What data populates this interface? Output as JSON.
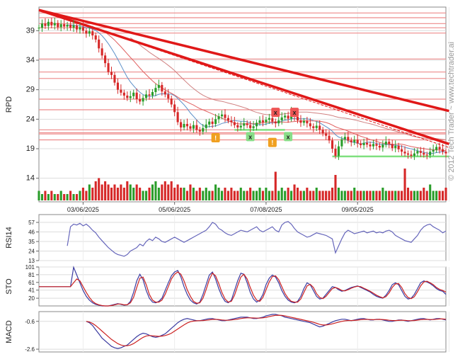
{
  "watermark": "© 2012 Tech Trader ~ www.techtrader.ai",
  "colors": {
    "up": "#2a9d2a",
    "down": "#d62828",
    "trendline": "#e01818",
    "resistance": "#ee8a8a",
    "support": "#7fe07f",
    "ma_fast": "#e06060",
    "ma_slow": "#5a8fc8",
    "osc_blue": "#3a3aa0",
    "osc_red": "#cc2222",
    "rsi_line": "#6666bb",
    "warn": "#f0a020",
    "sell_marker": "#ee5555",
    "buy_marker": "#88dd88"
  },
  "chart_data": [
    {
      "type": "candlestick",
      "ylabel": "RPD",
      "yticks": [
        39,
        34,
        29,
        24,
        19,
        14
      ],
      "ylim": [
        10,
        43
      ],
      "x_tick_labels": [
        "03/06/2025",
        "05/06/2025",
        "07/08/2025",
        "09/05/2025"
      ],
      "close_series": [
        39.5,
        40.2,
        39.8,
        40.5,
        39.9,
        40.3,
        39.6,
        40.1,
        39.7,
        40.0,
        39.5,
        39.9,
        39.2,
        39.6,
        39.0,
        38.5,
        38.9,
        38.2,
        37.5,
        36.0,
        34.8,
        33.5,
        32.0,
        31.5,
        30.2,
        29.0,
        28.5,
        28.0,
        27.6,
        27.9,
        28.5,
        27.4,
        27.0,
        27.6,
        28.2,
        28.0,
        28.6,
        29.3,
        29.8,
        28.7,
        28.2,
        27.5,
        26.5,
        25.2,
        23.5,
        22.6,
        23.2,
        22.8,
        22.4,
        23.0,
        22.2,
        21.9,
        22.5,
        23.1,
        23.6,
        23.2,
        24.0,
        24.5,
        24.8,
        24.2,
        23.8,
        23.5,
        23.0,
        22.6,
        22.9,
        23.3,
        23.0,
        22.5,
        22.8,
        23.4,
        23.8,
        23.5,
        23.9,
        24.2,
        23.6,
        23.3,
        23.8,
        24.3,
        24.6,
        24.1,
        25.2,
        24.4,
        23.8,
        23.4,
        23.7,
        23.3,
        22.8,
        22.5,
        22.9,
        22.2,
        21.6,
        21.2,
        20.4,
        19.0,
        17.8,
        19.4,
        20.6,
        21.0,
        20.4,
        20.1,
        20.5,
        19.9,
        19.6,
        20.0,
        19.7,
        19.4,
        19.8,
        19.5,
        19.2,
        19.7,
        20.2,
        19.8,
        19.1,
        19.5,
        18.9,
        18.5,
        18.2,
        18.0,
        17.8,
        18.2,
        18.6,
        18.3,
        18.0,
        17.9,
        18.5,
        18.8,
        19.3,
        18.9,
        18.5,
        18.2
      ],
      "trendlines": [
        {
          "from": [
            0,
            42.5
          ],
          "to": [
            130,
            25.4
          ]
        },
        {
          "from": [
            0,
            42.5
          ],
          "to": [
            130,
            19.8
          ]
        },
        {
          "from": [
            0,
            42.5
          ],
          "to": [
            130,
            19.2
          ]
        }
      ],
      "resistance_levels": [
        42.0,
        41.2,
        40.2,
        39.5,
        38.6,
        34.2,
        32.0,
        30.9,
        27.4,
        25.6,
        22.2,
        21.7,
        21.5,
        20.5
      ],
      "support_segments": [
        {
          "y": 22.2,
          "from": 62,
          "to": 78
        },
        {
          "y": 17.7,
          "from": 93,
          "to": 130
        }
      ],
      "markers": [
        {
          "kind": "warn",
          "label": "!",
          "x": 56,
          "y": 20.8
        },
        {
          "kind": "warn",
          "label": "!",
          "x": 74,
          "y": 20.0
        },
        {
          "kind": "buy",
          "label": "x",
          "x": 67,
          "y": 21.0
        },
        {
          "kind": "buy",
          "label": "x",
          "x": 79,
          "y": 21.0
        },
        {
          "kind": "sell",
          "label": "x",
          "x": 75,
          "y": 25.1
        },
        {
          "kind": "sell",
          "label": "x",
          "x": 81,
          "y": 25.1
        }
      ],
      "volume": [
        0.3,
        0.2,
        0.3,
        0.2,
        0.3,
        0.2,
        0.2,
        0.3,
        0.2,
        0.2,
        0.3,
        0.2,
        0.2,
        0.3,
        0.4,
        0.3,
        0.5,
        0.4,
        0.6,
        0.7,
        0.5,
        0.6,
        0.5,
        0.4,
        0.5,
        0.4,
        0.5,
        0.4,
        0.6,
        0.5,
        0.4,
        0.5,
        0.4,
        0.3,
        0.3,
        0.4,
        0.5,
        0.6,
        0.4,
        0.5,
        0.6,
        0.5,
        0.6,
        0.4,
        0.5,
        0.4,
        0.4,
        0.3,
        0.5,
        0.4,
        0.3,
        0.4,
        0.3,
        0.4,
        0.3,
        0.3,
        0.5,
        0.4,
        0.3,
        0.4,
        0.3,
        0.4,
        0.3,
        0.3,
        0.4,
        0.3,
        0.3,
        0.4,
        0.3,
        0.3,
        0.4,
        0.3,
        0.4,
        0.3,
        0.3,
        0.9,
        0.3,
        0.4,
        0.3,
        0.4,
        0.3,
        0.5,
        0.4,
        0.3,
        0.3,
        0.4,
        0.3,
        0.3,
        0.4,
        0.3,
        0.3,
        0.3,
        0.3,
        0.4,
        0.8,
        0.4,
        0.3,
        0.3,
        0.3,
        0.3,
        0.4,
        0.3,
        0.3,
        0.3,
        0.3,
        0.3,
        0.3,
        0.3,
        0.3,
        0.4,
        0.3,
        0.3,
        0.3,
        0.3,
        0.3,
        0.3,
        1.0,
        0.4,
        0.3,
        0.3,
        0.3,
        0.3,
        0.4,
        0.3,
        0.5,
        0.3,
        0.3,
        0.3,
        0.3,
        0.4
      ]
    },
    {
      "type": "line",
      "ylabel": "RSI14",
      "yticks": [
        57,
        46,
        35,
        24,
        13
      ],
      "ylim": [
        13,
        66
      ],
      "values": [
        null,
        null,
        null,
        null,
        null,
        null,
        null,
        null,
        null,
        30,
        52,
        55,
        54,
        56,
        53,
        55,
        52,
        48,
        45,
        40,
        36,
        32,
        28,
        25,
        22,
        20,
        19,
        18,
        20,
        24,
        26,
        28,
        32,
        30,
        35,
        38,
        36,
        40,
        38,
        35,
        34,
        36,
        38,
        40,
        38,
        36,
        34,
        36,
        38,
        40,
        42,
        44,
        46,
        48,
        52,
        57,
        55,
        50,
        48,
        45,
        43,
        42,
        44,
        46,
        48,
        47,
        46,
        48,
        50,
        52,
        48,
        46,
        48,
        50,
        52,
        48,
        46,
        54,
        57,
        58,
        55,
        50,
        46,
        44,
        42,
        40,
        41,
        43,
        45,
        44,
        43,
        42,
        40,
        38,
        22,
        30,
        38,
        45,
        48,
        46,
        44,
        45,
        46,
        47,
        45,
        46,
        47,
        45,
        46,
        45,
        47,
        48,
        46,
        42,
        40,
        38,
        36,
        35,
        34,
        38,
        42,
        48,
        52,
        54,
        55,
        52,
        50,
        48,
        45,
        47
      ]
    },
    {
      "type": "line",
      "ylabel": "STO",
      "yticks": [
        101,
        81,
        61,
        41,
        20
      ],
      "ylim": [
        0,
        101
      ],
      "series": [
        {
          "values": [
            50,
            50,
            50,
            50,
            50,
            50,
            50,
            50,
            50,
            50,
            50,
            100,
            80,
            60,
            40,
            25,
            15,
            8,
            4,
            2,
            0,
            0,
            0,
            2,
            4,
            6,
            4,
            2,
            3,
            12,
            35,
            65,
            82,
            68,
            40,
            20,
            10,
            8,
            12,
            20,
            40,
            60,
            78,
            88,
            92,
            75,
            50,
            30,
            15,
            8,
            5,
            10,
            30,
            55,
            80,
            88,
            70,
            45,
            25,
            12,
            8,
            15,
            40,
            65,
            85,
            82,
            60,
            35,
            18,
            10,
            15,
            30,
            55,
            72,
            80,
            75,
            60,
            40,
            25,
            15,
            10,
            8,
            12,
            25,
            45,
            60,
            55,
            40,
            25,
            18,
            20,
            30,
            40,
            50,
            48,
            42,
            38,
            40,
            44,
            48,
            50,
            52,
            48,
            44,
            40,
            36,
            30,
            25,
            22,
            20,
            28,
            40,
            55,
            60,
            55,
            40,
            25,
            18,
            20,
            30,
            45,
            60,
            65,
            62,
            58,
            52,
            45,
            40,
            38,
            30
          ]
        },
        {
          "values": [
            50,
            50,
            50,
            50,
            50,
            50,
            50,
            50,
            50,
            50,
            50,
            60,
            70,
            65,
            50,
            35,
            22,
            12,
            6,
            3,
            1,
            0,
            0,
            1,
            3,
            5,
            5,
            3,
            3,
            8,
            22,
            48,
            72,
            75,
            55,
            30,
            15,
            10,
            10,
            15,
            30,
            50,
            70,
            82,
            88,
            82,
            65,
            42,
            25,
            12,
            7,
            8,
            20,
            42,
            68,
            85,
            78,
            58,
            35,
            18,
            10,
            12,
            28,
            52,
            75,
            82,
            70,
            48,
            28,
            15,
            12,
            22,
            42,
            62,
            76,
            78,
            68,
            50,
            32,
            20,
            12,
            10,
            10,
            18,
            35,
            52,
            56,
            48,
            32,
            22,
            19,
            25,
            35,
            45,
            48,
            45,
            40,
            39,
            42,
            46,
            49,
            51,
            50,
            46,
            42,
            38,
            33,
            28,
            24,
            21,
            24,
            34,
            48,
            57,
            58,
            48,
            32,
            22,
            19,
            24,
            37,
            52,
            62,
            64,
            60,
            55,
            48,
            43,
            40,
            36
          ]
        }
      ]
    },
    {
      "type": "line",
      "ylabel": "MACD",
      "yticks": [
        -0.6,
        -2.6
      ],
      "ylim": [
        -2.8,
        0.1
      ],
      "series": [
        {
          "values": [
            null,
            null,
            null,
            null,
            null,
            null,
            null,
            null,
            null,
            null,
            null,
            null,
            null,
            null,
            null,
            -0.6,
            -0.7,
            -0.9,
            -1.2,
            -1.5,
            -1.8,
            -2.0,
            -2.2,
            -2.4,
            -2.5,
            -2.55,
            -2.5,
            -2.4,
            -2.3,
            -2.1,
            -1.9,
            -1.7,
            -1.55,
            -1.45,
            -1.5,
            -1.6,
            -1.7,
            -1.75,
            -1.7,
            -1.6,
            -1.5,
            -1.3,
            -1.1,
            -0.9,
            -0.7,
            -0.55,
            -0.45,
            -0.4,
            -0.45,
            -0.5,
            -0.55,
            -0.55,
            -0.5,
            -0.45,
            -0.4,
            -0.4,
            -0.45,
            -0.5,
            -0.55,
            -0.55,
            -0.5,
            -0.45,
            -0.4,
            -0.35,
            -0.3,
            -0.3,
            -0.3,
            -0.35,
            -0.4,
            -0.4,
            -0.35,
            -0.3,
            -0.2,
            -0.15,
            -0.1,
            -0.1,
            -0.15,
            -0.2,
            -0.3,
            -0.35,
            -0.4,
            -0.45,
            -0.5,
            -0.55,
            -0.6,
            -0.65,
            -0.7,
            -0.8,
            -0.9,
            -1.0,
            -0.95,
            -0.85,
            -0.75,
            -0.65,
            -0.55,
            -0.5,
            -0.45,
            -0.45,
            -0.5,
            -0.55,
            -0.5,
            -0.45,
            -0.4,
            -0.4,
            -0.45,
            -0.5,
            -0.5,
            -0.45,
            -0.45,
            -0.5,
            -0.55,
            -0.6,
            -0.6,
            -0.55,
            -0.5,
            -0.5,
            -0.55,
            -0.6,
            -0.55,
            -0.5,
            -0.45,
            -0.4,
            -0.4,
            -0.45,
            -0.5,
            -0.45,
            -0.4,
            -0.4,
            -0.45,
            -0.5
          ]
        },
        {
          "values": [
            null,
            null,
            null,
            null,
            null,
            null,
            null,
            null,
            null,
            null,
            null,
            null,
            null,
            null,
            null,
            -0.6,
            -0.65,
            -0.75,
            -0.9,
            -1.1,
            -1.3,
            -1.5,
            -1.7,
            -1.9,
            -2.05,
            -2.2,
            -2.3,
            -2.35,
            -2.35,
            -2.3,
            -2.2,
            -2.05,
            -1.9,
            -1.75,
            -1.65,
            -1.62,
            -1.64,
            -1.66,
            -1.68,
            -1.66,
            -1.62,
            -1.55,
            -1.45,
            -1.3,
            -1.15,
            -1.0,
            -0.85,
            -0.72,
            -0.63,
            -0.58,
            -0.56,
            -0.55,
            -0.54,
            -0.52,
            -0.49,
            -0.46,
            -0.46,
            -0.47,
            -0.5,
            -0.52,
            -0.52,
            -0.5,
            -0.47,
            -0.44,
            -0.4,
            -0.37,
            -0.35,
            -0.35,
            -0.36,
            -0.37,
            -0.37,
            -0.35,
            -0.31,
            -0.26,
            -0.21,
            -0.17,
            -0.16,
            -0.17,
            -0.21,
            -0.26,
            -0.31,
            -0.36,
            -0.41,
            -0.46,
            -0.51,
            -0.56,
            -0.61,
            -0.67,
            -0.74,
            -0.82,
            -0.86,
            -0.86,
            -0.83,
            -0.78,
            -0.72,
            -0.66,
            -0.6,
            -0.56,
            -0.54,
            -0.54,
            -0.53,
            -0.51,
            -0.48,
            -0.46,
            -0.46,
            -0.47,
            -0.48,
            -0.47,
            -0.46,
            -0.47,
            -0.49,
            -0.52,
            -0.54,
            -0.54,
            -0.53,
            -0.52,
            -0.53,
            -0.55,
            -0.55,
            -0.54,
            -0.51,
            -0.48,
            -0.46,
            -0.46,
            -0.47,
            -0.47,
            -0.45,
            -0.43,
            -0.43,
            -0.45
          ]
        }
      ]
    }
  ]
}
